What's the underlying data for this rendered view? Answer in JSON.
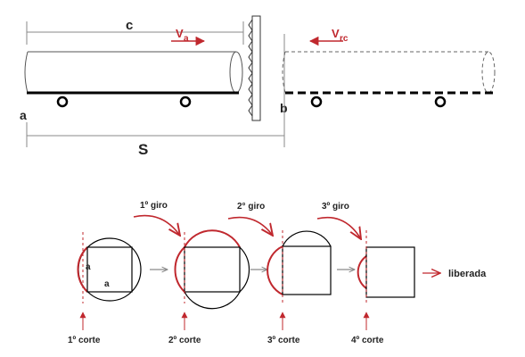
{
  "top": {
    "label_c": "c",
    "label_va": "V",
    "label_va_sub": "a",
    "label_vrc": "V",
    "label_vrc_sub": "rc",
    "label_a": "a",
    "label_b": "b",
    "label_s": "S"
  },
  "bottom": {
    "giro_labels": [
      "1º giro",
      "2° giro",
      "3º giro"
    ],
    "corte_labels": [
      "1º corte",
      "2º corte",
      "3º corte",
      "4º corte"
    ],
    "square_labels": [
      "a",
      "a"
    ],
    "liberada": "liberada"
  },
  "colors": {
    "line": "#000000",
    "accent": "#c0282e",
    "guide": "#8a8a8a"
  }
}
